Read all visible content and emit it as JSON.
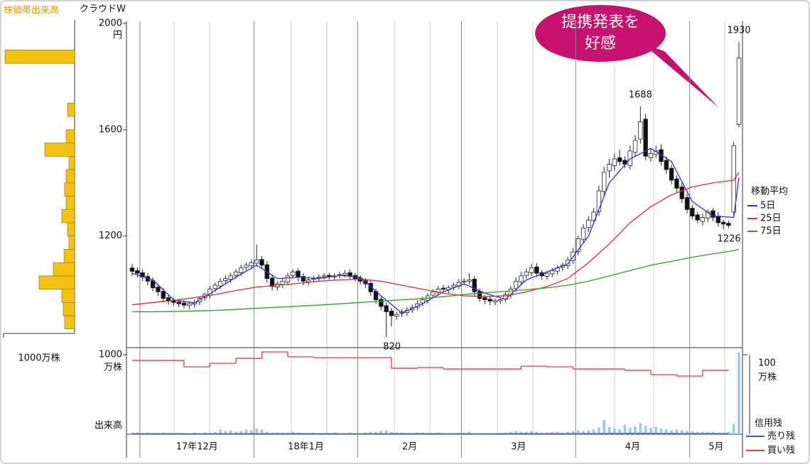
{
  "chart_data": {
    "type": "candlestick",
    "title": "クラウドW",
    "y_unit": "円",
    "ylim": [
      780,
      2000
    ],
    "yticks": [
      1200,
      1600,
      2000
    ],
    "candles": {
      "open": [
        1080,
        1070,
        1062,
        1048,
        1032,
        1008,
        992,
        968,
        958,
        952,
        948,
        938,
        944,
        952,
        968,
        978,
        1002,
        1012,
        1032,
        1038,
        1052,
        1062,
        1082,
        1088,
        1098,
        1112,
        1092,
        1042,
        1008,
        1018,
        1028,
        1052,
        1068,
        1048,
        1028,
        1038,
        1042,
        1046,
        1052,
        1046,
        1052,
        1054,
        1062,
        1052,
        1042,
        1032,
        1022,
        992,
        962,
        938,
        918,
        898,
        908,
        912,
        922,
        932,
        948,
        958,
        978,
        988,
        1004,
        998,
        1008,
        1012,
        1028,
        1030,
        1038,
        992,
        968,
        962,
        952,
        956,
        962,
        978,
        1002,
        1028,
        1052,
        1062,
        1084,
        1062,
        1048,
        1058,
        1068,
        1082,
        1088,
        1108,
        1142,
        1188,
        1232,
        1258,
        1292,
        1368,
        1445,
        1465,
        1495,
        1485,
        1465,
        1515,
        1565,
        1640,
        1495,
        1508,
        1525,
        1485,
        1455,
        1415,
        1385,
        1345,
        1305,
        1280,
        1255,
        1268,
        1295,
        1275,
        1252,
        1248,
        1290,
        1620
      ],
      "high": [
        1095,
        1082,
        1075,
        1060,
        1045,
        1020,
        1005,
        978,
        968,
        962,
        958,
        955,
        960,
        970,
        988,
        1012,
        1025,
        1042,
        1052,
        1062,
        1075,
        1092,
        1100,
        1112,
        1168,
        1125,
        1105,
        1055,
        1030,
        1040,
        1062,
        1075,
        1078,
        1060,
        1048,
        1050,
        1055,
        1060,
        1062,
        1060,
        1065,
        1072,
        1075,
        1062,
        1052,
        1042,
        1035,
        1002,
        972,
        950,
        930,
        915,
        925,
        932,
        942,
        958,
        970,
        985,
        1000,
        1012,
        1015,
        1015,
        1025,
        1038,
        1042,
        1060,
        1050,
        1002,
        978,
        972,
        965,
        968,
        990,
        1012,
        1045,
        1065,
        1078,
        1095,
        1098,
        1072,
        1068,
        1080,
        1090,
        1100,
        1122,
        1155,
        1202,
        1245,
        1275,
        1305,
        1390,
        1460,
        1490,
        1510,
        1525,
        1500,
        1540,
        1580,
        1688,
        1660,
        1528,
        1540,
        1545,
        1500,
        1468,
        1428,
        1400,
        1360,
        1318,
        1292,
        1285,
        1300,
        1305,
        1290,
        1262,
        1258,
        1555,
        1930
      ],
      "low": [
        1050,
        1045,
        1030,
        1015,
        992,
        975,
        950,
        942,
        938,
        932,
        928,
        925,
        932,
        940,
        955,
        965,
        990,
        1000,
        1022,
        1025,
        1040,
        1050,
        1070,
        1075,
        1085,
        1075,
        1025,
        995,
        995,
        1005,
        1015,
        1040,
        1030,
        1015,
        1015,
        1025,
        1030,
        1035,
        1035,
        1032,
        1040,
        1045,
        1038,
        1028,
        1018,
        1005,
        975,
        945,
        920,
        820,
        860,
        885,
        895,
        900,
        910,
        920,
        935,
        945,
        965,
        975,
        990,
        985,
        995,
        1000,
        1015,
        1018,
        975,
        952,
        945,
        940,
        940,
        945,
        950,
        965,
        990,
        1015,
        1040,
        1050,
        1045,
        1035,
        1035,
        1045,
        1055,
        1068,
        1075,
        1095,
        1128,
        1172,
        1215,
        1245,
        1275,
        1350,
        1420,
        1445,
        1465,
        1455,
        1450,
        1500,
        1548,
        1485,
        1480,
        1495,
        1465,
        1435,
        1395,
        1365,
        1325,
        1285,
        1262,
        1248,
        1240,
        1252,
        1255,
        1235,
        1226,
        1230,
        1275,
        1610
      ],
      "close": [
        1067,
        1060,
        1045,
        1030,
        1005,
        990,
        965,
        955,
        950,
        945,
        940,
        945,
        950,
        965,
        980,
        1000,
        1015,
        1030,
        1040,
        1050,
        1065,
        1080,
        1090,
        1100,
        1110,
        1090,
        1040,
        1010,
        1020,
        1030,
        1050,
        1065,
        1045,
        1030,
        1035,
        1040,
        1045,
        1050,
        1048,
        1050,
        1055,
        1060,
        1050,
        1040,
        1030,
        1020,
        990,
        960,
        935,
        915,
        900,
        905,
        915,
        920,
        930,
        945,
        960,
        975,
        990,
        1000,
        1000,
        1005,
        1015,
        1025,
        1030,
        1035,
        990,
        965,
        960,
        955,
        958,
        960,
        980,
        1000,
        1030,
        1050,
        1065,
        1080,
        1060,
        1050,
        1060,
        1070,
        1080,
        1090,
        1110,
        1140,
        1190,
        1230,
        1260,
        1290,
        1370,
        1440,
        1470,
        1490,
        1480,
        1470,
        1520,
        1560,
        1630,
        1500,
        1510,
        1520,
        1480,
        1450,
        1410,
        1380,
        1340,
        1300,
        1275,
        1260,
        1270,
        1290,
        1270,
        1250,
        1245,
        1240,
        1540,
        1870
      ]
    },
    "moving_averages": {
      "title": "移動平均",
      "index": [
        0,
        4,
        8,
        12,
        16,
        20,
        24,
        28,
        32,
        36,
        40,
        44,
        48,
        52,
        56,
        60,
        64,
        68,
        72,
        76,
        80,
        84,
        88,
        92,
        96,
        100,
        104,
        108,
        112,
        116,
        117
      ],
      "series": [
        {
          "name": "5日",
          "color": "#3333cc",
          "values": [
            1060,
            1035,
            960,
            948,
            995,
            1045,
            1090,
            1040,
            1045,
            1040,
            1052,
            1045,
            975,
            910,
            945,
            990,
            1020,
            985,
            962,
            1035,
            1065,
            1095,
            1200,
            1400,
            1490,
            1530,
            1480,
            1330,
            1275,
            1270,
            1420
          ]
        },
        {
          "name": "25日",
          "color": "#cc3333",
          "values": [
            941,
            950,
            958,
            968,
            980,
            995,
            1008,
            1015,
            1022,
            1030,
            1035,
            1038,
            1030,
            1015,
            1000,
            985,
            975,
            972,
            975,
            990,
            1010,
            1040,
            1100,
            1170,
            1250,
            1310,
            1355,
            1385,
            1400,
            1410,
            1440
          ]
        },
        {
          "name": "75日",
          "color": "#339933",
          "values": [
            915,
            915,
            916,
            918,
            920,
            924,
            928,
            932,
            936,
            940,
            945,
            950,
            955,
            960,
            965,
            972,
            980,
            986,
            992,
            998,
            1005,
            1015,
            1030,
            1050,
            1070,
            1090,
            1105,
            1120,
            1133,
            1145,
            1150
          ]
        }
      ]
    },
    "annotations": [
      {
        "index": 117,
        "value": 1930,
        "position": "above"
      },
      {
        "index": 98,
        "value": 1688,
        "position": "above"
      },
      {
        "index": 114,
        "value": 1226,
        "position": "below"
      },
      {
        "index": 49,
        "value": 820,
        "position": "below"
      }
    ],
    "callout": [
      "提携発表を",
      "好感"
    ],
    "months": [
      {
        "label": "17年12月",
        "start": 2
      },
      {
        "label": "18年1月",
        "start": 24
      },
      {
        "label": "2月",
        "start": 44
      },
      {
        "label": "3月",
        "start": 64
      },
      {
        "label": "4月",
        "start": 86
      },
      {
        "label": "5月",
        "start": 108
      }
    ],
    "price_volume": {
      "title": "株価帯出来高",
      "color": "#f5c211",
      "bins": [
        850,
        900,
        950,
        1000,
        1050,
        1100,
        1150,
        1200,
        1250,
        1300,
        1350,
        1400,
        1450,
        1500,
        1550,
        1600,
        1650,
        1700,
        1750,
        1800,
        1850,
        1900
      ],
      "values": [
        140,
        160,
        180,
        500,
        300,
        150,
        80,
        100,
        180,
        120,
        140,
        120,
        80,
        420,
        120,
        0,
        100,
        0,
        0,
        0,
        980
      ],
      "xlim": [
        0,
        1000
      ],
      "xticks": [
        {
          "value": 1000,
          "label": "1000万株"
        }
      ]
    },
    "margin": {
      "title": "信用残",
      "ylim": [
        0,
        1000
      ],
      "yticks": [
        1000
      ],
      "unit": "万株",
      "index": [
        0,
        5,
        10,
        15,
        20,
        25,
        30,
        35,
        40,
        45,
        50,
        55,
        60,
        65,
        70,
        75,
        80,
        85,
        90,
        95,
        100,
        105,
        110,
        115
      ],
      "series": [
        {
          "name": "売り残",
          "color": "#3a5fd0",
          "values": [
            6,
            6,
            5,
            5,
            6,
            7,
            6,
            6,
            5,
            5,
            6,
            6,
            5,
            5,
            6,
            6,
            7,
            8,
            9,
            10,
            9,
            8,
            8,
            8
          ]
        },
        {
          "name": "買い残",
          "color": "#e03c3c",
          "values": [
            929,
            929,
            848,
            893,
            955,
            1036,
            973,
            964,
            964,
            964,
            830,
            839,
            821,
            821,
            821,
            857,
            848,
            821,
            821,
            804,
            750,
            732,
            804,
            804
          ]
        }
      ]
    },
    "volume": {
      "title": "出来高",
      "color": "#9cc8ee",
      "ylim": [
        0,
        100
      ],
      "yticks": [
        100
      ],
      "unit": "万株",
      "values": [
        2,
        2,
        1,
        2,
        1,
        1,
        2,
        1,
        1,
        1,
        1,
        1,
        2,
        1,
        2,
        2,
        3,
        6,
        4,
        5,
        3,
        4,
        6,
        5,
        7,
        6,
        3,
        2,
        2,
        2,
        2,
        3,
        2,
        1,
        1,
        2,
        1,
        1,
        1,
        2,
        1,
        1,
        2,
        1,
        1,
        2,
        3,
        3,
        4,
        5,
        3,
        2,
        2,
        1,
        1,
        2,
        2,
        1,
        1,
        2,
        1,
        1,
        1,
        2,
        2,
        3,
        1,
        1,
        1,
        1,
        1,
        1,
        2,
        3,
        4,
        3,
        3,
        4,
        3,
        2,
        2,
        3,
        3,
        2,
        3,
        4,
        5,
        4,
        5,
        6,
        8,
        18,
        9,
        7,
        6,
        12,
        8,
        10,
        14,
        11,
        8,
        9,
        7,
        6,
        5,
        6,
        5,
        4,
        4,
        3,
        3,
        3,
        3,
        2,
        2,
        3,
        13,
        103
      ]
    }
  }
}
